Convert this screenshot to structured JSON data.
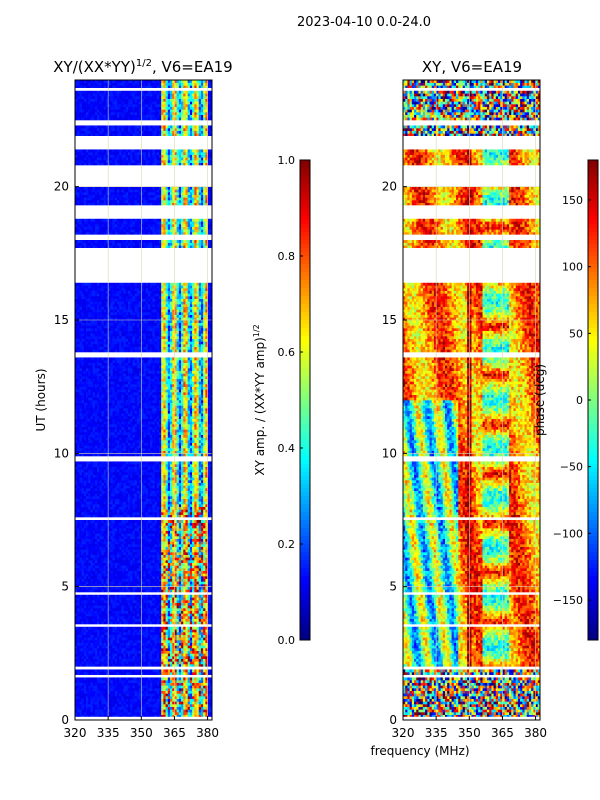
{
  "suptitle": "2023-04-10 0.0-24.0",
  "colors": {
    "background": "#ffffff",
    "axis": "#000000",
    "grid": "#d8d8b0",
    "gap": "#ffffff"
  },
  "chart_data": [
    {
      "type": "heatmap",
      "title_main": "XY/(XX*YY)",
      "title_exp": "1/2",
      "title_tail": ", V6=EA19",
      "xlim": [
        320,
        382
      ],
      "ylim": [
        0,
        24
      ],
      "xticks": [
        "320",
        "335",
        "350",
        "365",
        "380"
      ],
      "xtick_values": [
        320,
        335,
        350,
        365,
        380
      ],
      "yticks": [
        "0",
        "5",
        "10",
        "15",
        "20"
      ],
      "ytick_values": [
        0,
        5,
        10,
        15,
        20
      ],
      "ylabel": "UT (hours)",
      "colorbar": {
        "label_main": "XY amp. / (XX*YY amp)",
        "label_exp": "1/2",
        "range": [
          0.0,
          1.0
        ],
        "ticks": [
          "0.0",
          "0.2",
          "0.4",
          "0.6",
          "0.8",
          "1.0"
        ],
        "tick_values": [
          0.0,
          0.2,
          0.4,
          0.6,
          0.8,
          1.0
        ]
      }
    },
    {
      "type": "heatmap",
      "title": "XY, V6=EA19",
      "xlim": [
        320,
        382
      ],
      "ylim": [
        0,
        24
      ],
      "xticks": [
        "320",
        "335",
        "350",
        "365",
        "380"
      ],
      "xtick_values": [
        320,
        335,
        350,
        365,
        380
      ],
      "yticks": [
        "0",
        "5",
        "10",
        "15",
        "20"
      ],
      "ytick_values": [
        0,
        5,
        10,
        15,
        20
      ],
      "xlabel": "frequency (MHz)",
      "colorbar": {
        "label": "phase (deg)",
        "range": [
          -180,
          180
        ],
        "ticks": [
          "150",
          "100",
          "50",
          "0",
          "−50",
          "−100",
          "−150"
        ],
        "tick_values": [
          150,
          100,
          50,
          0,
          -50,
          -100,
          -150
        ]
      }
    }
  ],
  "data_gaps_hours": [
    [
      16.4,
      17.7
    ],
    [
      18.0,
      18.2
    ],
    [
      18.8,
      19.3
    ],
    [
      20.0,
      20.8
    ],
    [
      21.4,
      21.9
    ],
    [
      22.3,
      22.45
    ],
    [
      13.6,
      13.75
    ],
    [
      9.7,
      9.85
    ],
    [
      7.5,
      7.6
    ],
    [
      4.7,
      4.78
    ],
    [
      3.5,
      3.58
    ],
    [
      1.9,
      2.0
    ],
    [
      1.6,
      1.68
    ],
    [
      0.05,
      0.12
    ],
    [
      23.6,
      23.7
    ]
  ],
  "amplitude_features": {
    "high_band_mhz": [
      359,
      380
    ],
    "background_level": 0.1,
    "band_level": 0.55
  }
}
